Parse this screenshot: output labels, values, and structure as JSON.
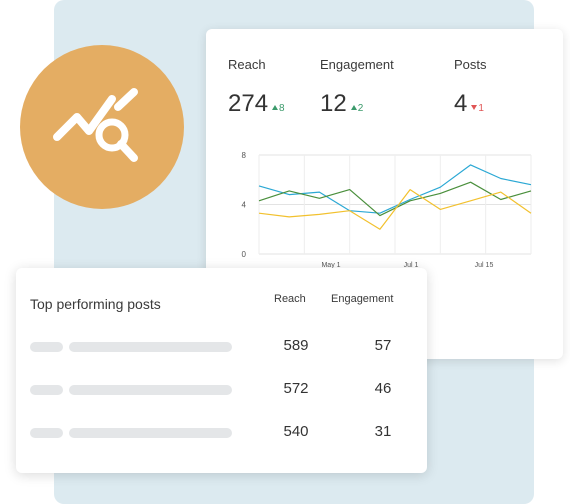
{
  "stats": {
    "reach": {
      "label": "Reach",
      "value": "274",
      "delta": "8",
      "direction": "up"
    },
    "engagement": {
      "label": "Engagement",
      "value": "12",
      "delta": "2",
      "direction": "up"
    },
    "posts": {
      "label": "Posts",
      "value": "4",
      "delta": "1",
      "direction": "down"
    }
  },
  "icons": {
    "badge": "analytics-search-icon"
  },
  "colors": {
    "blue": "#2ba8d4",
    "green": "#4a8f3c",
    "yellow": "#f2c12e",
    "badge": "#e4ad63",
    "up": "#3b9a6b",
    "down": "#e05555"
  },
  "chart_data": {
    "type": "line",
    "x_ticks": [
      "May 1",
      "Jul 1",
      "Jul 15"
    ],
    "y_ticks": [
      "8",
      "4",
      "0"
    ],
    "ylim": [
      0,
      8
    ],
    "grid": true,
    "series": [
      {
        "color": "#2ba8d4",
        "values": [
          5.5,
          4.8,
          5.0,
          3.5,
          3.3,
          4.4,
          5.4,
          7.2,
          6.1,
          5.6
        ]
      },
      {
        "color": "#4a8f3c",
        "values": [
          4.3,
          5.1,
          4.5,
          5.2,
          3.1,
          4.3,
          4.9,
          5.8,
          4.4,
          5.1
        ]
      },
      {
        "color": "#f2c12e",
        "values": [
          3.3,
          3.0,
          3.2,
          3.5,
          2.0,
          5.2,
          3.6,
          4.3,
          5.0,
          3.3
        ]
      }
    ]
  },
  "top_posts": {
    "title": "Top performing posts",
    "col_reach": "Reach",
    "col_engagement": "Engagement",
    "rows": [
      {
        "reach": "589",
        "engagement": "57"
      },
      {
        "reach": "572",
        "engagement": "46"
      },
      {
        "reach": "540",
        "engagement": "31"
      }
    ]
  }
}
